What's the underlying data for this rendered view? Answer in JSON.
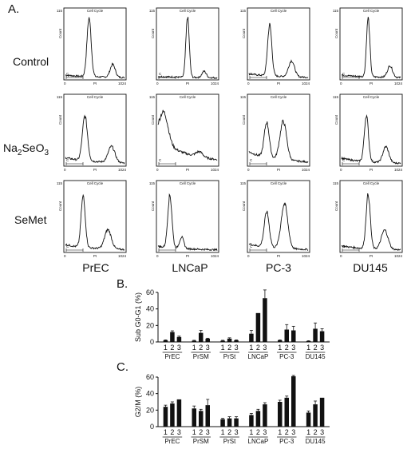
{
  "panel_a": {
    "label": "A.",
    "rows": [
      "Control",
      "Na2SeO3",
      "SeMet"
    ],
    "columns": [
      "PrEC",
      "LNCaP",
      "PC-3",
      "DU145"
    ],
    "histogram_title": "Cell Cycle",
    "y_axis_label": "Count",
    "x_axis_label": "PI",
    "x_axis_min": "0",
    "x_axis_max": "1024",
    "y_axis_max": "115",
    "gate_label": "C"
  },
  "chart_data": [
    {
      "type": "bar",
      "panel_label": "B.",
      "ylabel": "Sub G0-G1 (%)",
      "ylim": [
        0,
        60
      ],
      "yticks": [
        0,
        20,
        40,
        60
      ],
      "groups": [
        "PrEC",
        "PrSM",
        "PrSt",
        "LNCaP",
        "PC-3",
        "DU145"
      ],
      "conditions": [
        "1",
        "2",
        "3"
      ],
      "values": [
        [
          2,
          12,
          6
        ],
        [
          1.5,
          11,
          4
        ],
        [
          1.5,
          4,
          2
        ],
        [
          10,
          35,
          53
        ],
        [
          2,
          15,
          14
        ],
        [
          1,
          16,
          13
        ]
      ],
      "errors": [
        [
          0.5,
          1.5,
          1
        ],
        [
          0.5,
          3,
          0.5
        ],
        [
          0.5,
          1,
          0.5
        ],
        [
          4,
          0,
          10
        ],
        [
          0.5,
          6,
          5
        ],
        [
          0.5,
          7,
          3
        ]
      ]
    },
    {
      "type": "bar",
      "panel_label": "C.",
      "ylabel": "G2/M (%)",
      "ylim": [
        0,
        60
      ],
      "yticks": [
        0,
        20,
        40,
        60
      ],
      "groups": [
        "PrEC",
        "PrSM",
        "PrSt",
        "LNCaP",
        "PC-3",
        "DU145"
      ],
      "conditions": [
        "1",
        "2",
        "3"
      ],
      "values": [
        [
          24,
          28,
          33
        ],
        [
          22,
          19,
          26
        ],
        [
          9,
          10,
          10
        ],
        [
          14,
          19,
          27
        ],
        [
          30,
          35,
          61
        ],
        [
          17,
          27,
          35
        ]
      ],
      "errors": [
        [
          2,
          2,
          0
        ],
        [
          3,
          2,
          7
        ],
        [
          1,
          2,
          2
        ],
        [
          2,
          2,
          2
        ],
        [
          2,
          2,
          1
        ],
        [
          2,
          4,
          0
        ]
      ]
    }
  ]
}
